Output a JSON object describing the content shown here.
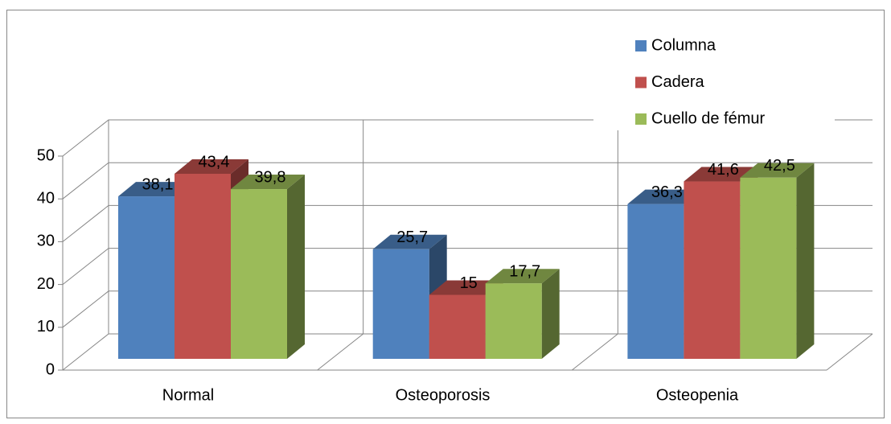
{
  "chart_data": {
    "type": "bar3d",
    "categories": [
      "Normal",
      "Osteoporosis",
      "Osteopenia"
    ],
    "series": [
      {
        "name": "Columna",
        "color": "#4f81bd",
        "values": [
          38.1,
          25.7,
          36.3
        ],
        "value_labels": [
          "38,1",
          "25,7",
          "36,3"
        ]
      },
      {
        "name": "Cadera",
        "color": "#c0504d",
        "values": [
          43.4,
          15,
          41.6
        ],
        "value_labels": [
          "43,4",
          "15",
          "41,6"
        ]
      },
      {
        "name": "Cuello de fémur",
        "color": "#9bbb59",
        "values": [
          39.8,
          17.7,
          42.5
        ],
        "value_labels": [
          "39,8",
          "17,7",
          "42,5"
        ]
      }
    ],
    "ylim": [
      0,
      50
    ],
    "yticks": [
      0,
      10,
      20,
      30,
      40,
      50
    ],
    "grid": true,
    "legend": "top-right"
  }
}
